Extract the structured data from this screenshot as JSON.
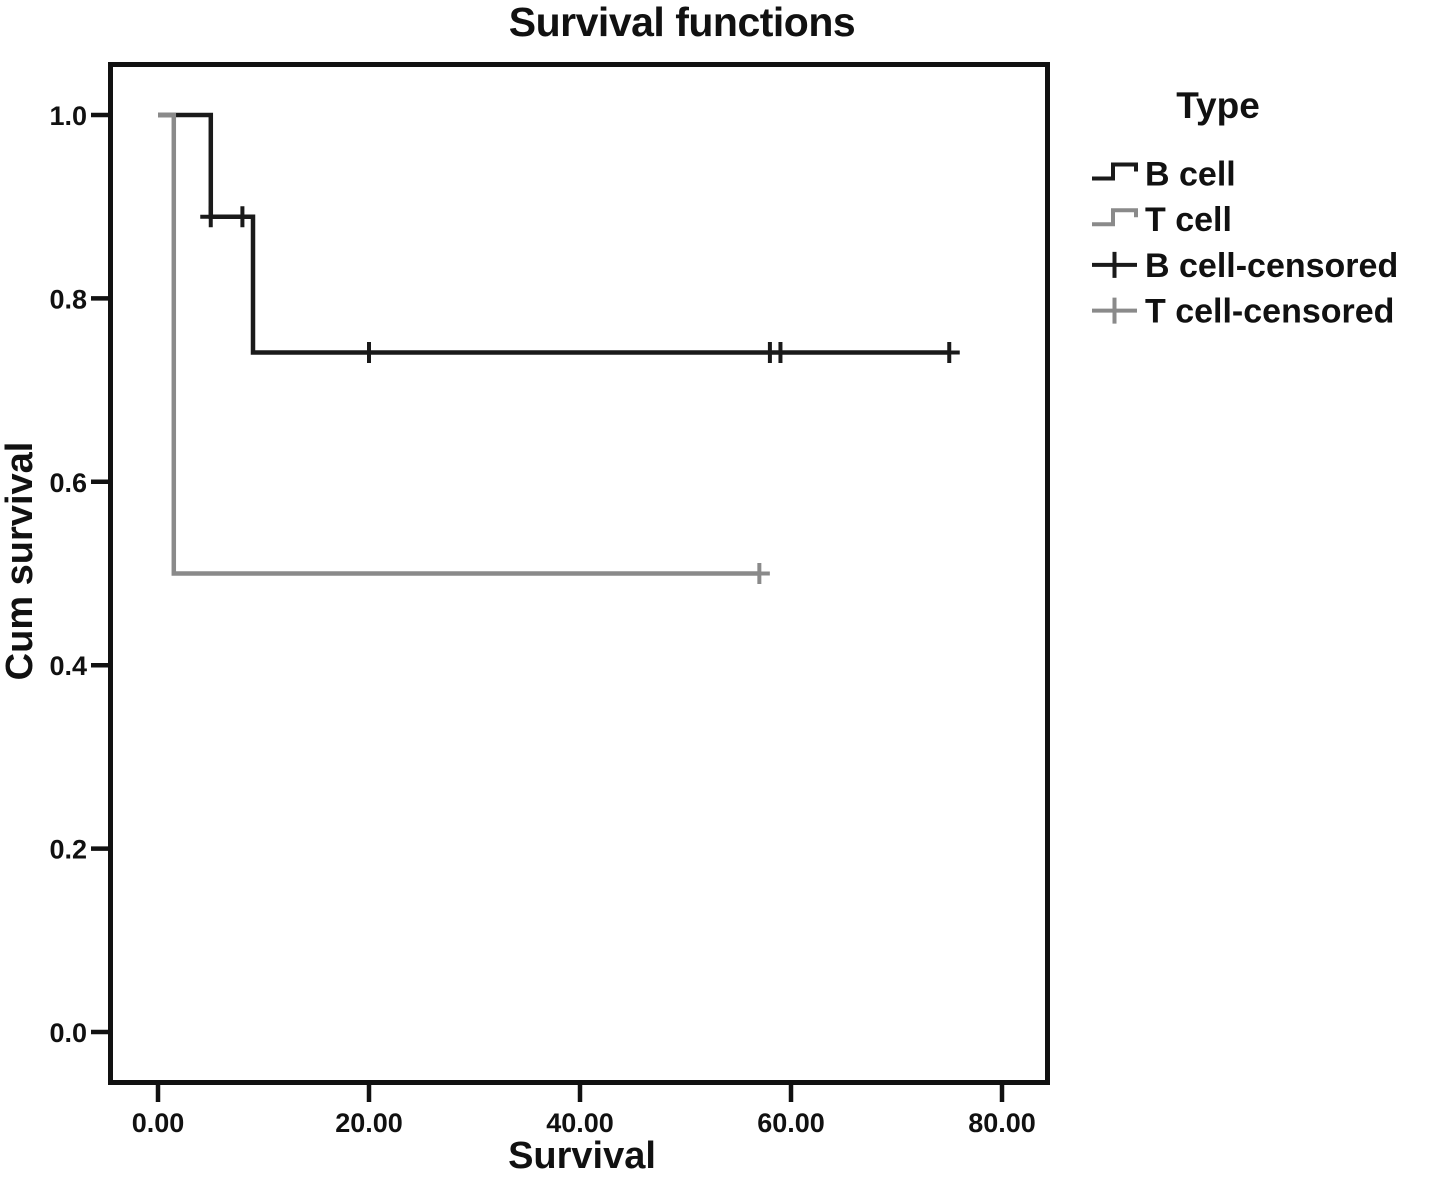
{
  "figure": {
    "background": "#ffffff",
    "frame_color": "#111111"
  },
  "chart_data": {
    "type": "line",
    "subtype": "kaplan-meier-step",
    "title": "Survival functions",
    "xlabel": "Survival",
    "ylabel": "Cum survival",
    "xlim": [
      -4.55,
      84.36
    ],
    "ylim": [
      -0.0545,
      1.0556
    ],
    "x_ticks": [
      0,
      20,
      40,
      60,
      80
    ],
    "x_tick_labels": [
      "0.00",
      "20.00",
      "40.00",
      "60.00",
      "80.00"
    ],
    "y_ticks": [
      0.0,
      0.2,
      0.4,
      0.6,
      0.8,
      1.0
    ],
    "y_tick_labels": [
      "0.0",
      "0.2",
      "0.4",
      "0.6",
      "0.8",
      "1.0"
    ],
    "grid": "off",
    "legend": {
      "title": "Type",
      "position": "right",
      "entries": [
        {
          "label": "B cell",
          "type": "step",
          "color": "#1a1a1a"
        },
        {
          "label": "T cell",
          "type": "step",
          "color": "#8a8a8a"
        },
        {
          "label": "B cell-censored",
          "type": "cross",
          "color": "#1a1a1a"
        },
        {
          "label": "T cell-censored",
          "type": "cross",
          "color": "#8a8a8a"
        }
      ]
    },
    "series": [
      {
        "name": "B cell",
        "color": "#1a1a1a",
        "points": [
          [
            0,
            1.0
          ],
          [
            5,
            1.0
          ],
          [
            5,
            0.889
          ],
          [
            9,
            0.889
          ],
          [
            9,
            0.741
          ],
          [
            75,
            0.741
          ]
        ],
        "censored": [
          [
            5,
            0.889
          ],
          [
            8,
            0.889
          ],
          [
            20,
            0.741
          ],
          [
            58,
            0.741
          ],
          [
            59,
            0.741
          ],
          [
            75,
            0.741
          ]
        ]
      },
      {
        "name": "T cell",
        "color": "#8a8a8a",
        "points": [
          [
            0,
            1.0
          ],
          [
            1.5,
            1.0
          ],
          [
            1.5,
            0.5
          ],
          [
            57,
            0.5
          ]
        ],
        "censored": [
          [
            57,
            0.5
          ]
        ]
      }
    ]
  }
}
